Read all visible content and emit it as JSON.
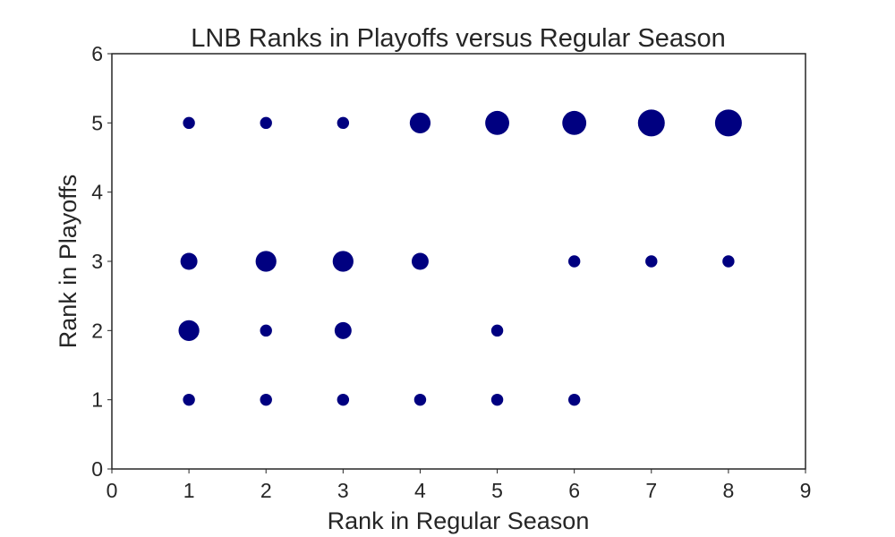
{
  "chart_data": {
    "type": "scatter",
    "title": "LNB Ranks in Playoffs versus Regular Season",
    "xlabel": "Rank in Regular Season",
    "ylabel": "Rank in Playoffs",
    "xlim": [
      0,
      9
    ],
    "ylim": [
      0,
      6
    ],
    "xticks": [
      0,
      1,
      2,
      3,
      4,
      5,
      6,
      7,
      8,
      9
    ],
    "yticks": [
      0,
      1,
      2,
      3,
      4,
      5,
      6
    ],
    "grid": false,
    "marker_color": "#000080",
    "points": [
      {
        "x": 1,
        "y": 5,
        "count": 1
      },
      {
        "x": 2,
        "y": 5,
        "count": 1
      },
      {
        "x": 3,
        "y": 5,
        "count": 1
      },
      {
        "x": 4,
        "y": 5,
        "count": 3
      },
      {
        "x": 5,
        "y": 5,
        "count": 4
      },
      {
        "x": 6,
        "y": 5,
        "count": 4
      },
      {
        "x": 7,
        "y": 5,
        "count": 5
      },
      {
        "x": 8,
        "y": 5,
        "count": 5
      },
      {
        "x": 1,
        "y": 3,
        "count": 2
      },
      {
        "x": 2,
        "y": 3,
        "count": 3
      },
      {
        "x": 3,
        "y": 3,
        "count": 3
      },
      {
        "x": 4,
        "y": 3,
        "count": 2
      },
      {
        "x": 6,
        "y": 3,
        "count": 1
      },
      {
        "x": 7,
        "y": 3,
        "count": 1
      },
      {
        "x": 8,
        "y": 3,
        "count": 1
      },
      {
        "x": 1,
        "y": 2,
        "count": 3
      },
      {
        "x": 2,
        "y": 2,
        "count": 1
      },
      {
        "x": 3,
        "y": 2,
        "count": 2
      },
      {
        "x": 5,
        "y": 2,
        "count": 1
      },
      {
        "x": 1,
        "y": 1,
        "count": 1
      },
      {
        "x": 2,
        "y": 1,
        "count": 1
      },
      {
        "x": 3,
        "y": 1,
        "count": 1
      },
      {
        "x": 4,
        "y": 1,
        "count": 1
      },
      {
        "x": 5,
        "y": 1,
        "count": 1
      },
      {
        "x": 6,
        "y": 1,
        "count": 1
      }
    ]
  }
}
